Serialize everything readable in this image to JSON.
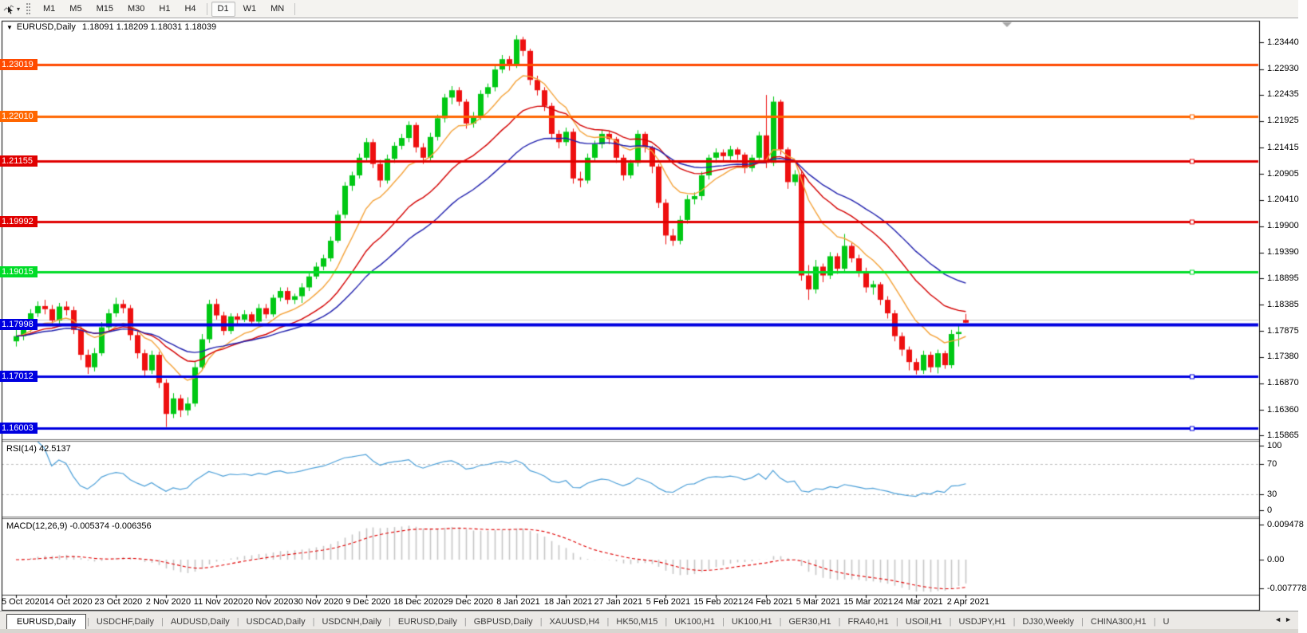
{
  "toolbar": {
    "dropdown_caret": "▾",
    "timeframes": [
      {
        "label": "M1",
        "active": false
      },
      {
        "label": "M5",
        "active": false
      },
      {
        "label": "M15",
        "active": false
      },
      {
        "label": "M30",
        "active": false
      },
      {
        "label": "H1",
        "active": false
      },
      {
        "label": "H4",
        "active": false
      },
      {
        "label": "D1",
        "active": true
      },
      {
        "label": "W1",
        "active": false
      },
      {
        "label": "MN",
        "active": false
      }
    ]
  },
  "chart_window": {
    "title_marker": "▼",
    "symbol": "EURUSD,Daily",
    "ohlc_text": "1.18091 1.18209 1.18031 1.18039",
    "price_axis_labels": [
      "1.23440",
      "1.22930",
      "1.22435",
      "1.21925",
      "1.21415",
      "1.20905",
      "1.20410",
      "1.19900",
      "1.19390",
      "1.18895",
      "1.18385",
      "1.17875",
      "1.17380",
      "1.16870",
      "1.16360",
      "1.15865"
    ],
    "hlines": [
      {
        "price": 1.23019,
        "label": "1.23019",
        "color": "#FF4A00",
        "width": 3,
        "handles": false
      },
      {
        "price": 1.2201,
        "label": "1.22010",
        "color": "#FF6600",
        "width": 3,
        "handles": true
      },
      {
        "price": 1.21155,
        "label": "1.21155",
        "color": "#E00000",
        "width": 3,
        "handles": true
      },
      {
        "price": 1.19992,
        "label": "1.19992",
        "color": "#E00000",
        "width": 3,
        "handles": true
      },
      {
        "price": 1.19015,
        "label": "1.19015",
        "color": "#00DC28",
        "width": 3,
        "handles": true
      },
      {
        "price": 1.17998,
        "label": "1.17998",
        "color": "#0000E0",
        "width": 4,
        "handles": false
      },
      {
        "price": 1.17012,
        "label": "1.17012",
        "color": "#0000E0",
        "width": 3,
        "handles": true
      },
      {
        "price": 1.16003,
        "label": "1.16003",
        "color": "#0000E0",
        "width": 3,
        "handles": true
      }
    ],
    "gray_line_price": 1.1809,
    "rsi": {
      "label": "RSI(14) 42.5137",
      "line_color": "#4B9FD8",
      "levels": [
        {
          "value": 100,
          "label": "100",
          "dashed": false
        },
        {
          "value": 70,
          "label": "70",
          "dashed": true
        },
        {
          "value": 30,
          "label": "30",
          "dashed": true
        },
        {
          "value": 0,
          "label": "0",
          "dashed": false
        }
      ]
    },
    "macd": {
      "label": "MACD(12,26,9) -0.005374 -0.006356",
      "hist_color": "#c6c6c6",
      "signal_color": "#E00000",
      "axis": [
        {
          "value": 0.009478,
          "label": "0.009478"
        },
        {
          "value": 0,
          "label": "0.00"
        },
        {
          "value": -0.007778,
          "label": "-0.007778"
        }
      ]
    }
  },
  "chart_data": {
    "type": "candlestick",
    "title": "EURUSD,Daily",
    "symbol": "EURUSD",
    "timeframe": "Daily",
    "up_color": "#00C814",
    "down_color": "#EE1010",
    "y_range": [
      1.15776,
      1.23615
    ],
    "x_tick_every": 7,
    "x_tick_labels": [
      "5 Oct 2020",
      "14 Oct 2020",
      "23 Oct 2020",
      "2 Nov 2020",
      "11 Nov 2020",
      "20 Nov 2020",
      "30 Nov 2020",
      "9 Dec 2020",
      "18 Dec 2020",
      "29 Dec 2020",
      "8 Jan 2021",
      "18 Jan 2021",
      "27 Jan 2021",
      "5 Feb 2021",
      "15 Feb 2021",
      "24 Feb 2021",
      "5 Mar 2021",
      "15 Mar 2021",
      "24 Mar 2021",
      "2 Apr 2021"
    ],
    "moving_averages": [
      {
        "type": "ema",
        "period": 10,
        "color": "#F5A33A"
      },
      {
        "type": "ema",
        "period": 21,
        "color": "#D40000"
      },
      {
        "type": "ema",
        "period": 34,
        "color": "#2121AE"
      }
    ],
    "rsi_period": 14,
    "macd_params": [
      12,
      26,
      9
    ],
    "ohlc": [
      [
        1.1768,
        1.1796,
        1.1758,
        1.1778
      ],
      [
        1.1778,
        1.18,
        1.177,
        1.1792
      ],
      [
        1.1792,
        1.183,
        1.1786,
        1.1822
      ],
      [
        1.1822,
        1.1845,
        1.1815,
        1.1836
      ],
      [
        1.1836,
        1.1848,
        1.182,
        1.183
      ],
      [
        1.183,
        1.1838,
        1.1798,
        1.1808
      ],
      [
        1.1808,
        1.1842,
        1.18,
        1.1835
      ],
      [
        1.1835,
        1.1845,
        1.1818,
        1.1828
      ],
      [
        1.1828,
        1.1835,
        1.1782,
        1.179
      ],
      [
        1.179,
        1.1798,
        1.1732,
        1.1742
      ],
      [
        1.1742,
        1.1752,
        1.1705,
        1.1718
      ],
      [
        1.1718,
        1.1755,
        1.171,
        1.1745
      ],
      [
        1.1745,
        1.1805,
        1.174,
        1.1795
      ],
      [
        1.1795,
        1.183,
        1.1788,
        1.1822
      ],
      [
        1.1822,
        1.1852,
        1.1815,
        1.184
      ],
      [
        1.184,
        1.1848,
        1.1822,
        1.1832
      ],
      [
        1.1832,
        1.1838,
        1.177,
        1.178
      ],
      [
        1.178,
        1.1788,
        1.1735,
        1.1745
      ],
      [
        1.1745,
        1.1752,
        1.17,
        1.1712
      ],
      [
        1.1712,
        1.175,
        1.1705,
        1.1742
      ],
      [
        1.1742,
        1.1748,
        1.1678,
        1.1688
      ],
      [
        1.1688,
        1.1695,
        1.1603,
        1.1628
      ],
      [
        1.1628,
        1.1668,
        1.162,
        1.1658
      ],
      [
        1.1658,
        1.1665,
        1.1622,
        1.1635
      ],
      [
        1.1635,
        1.166,
        1.1625,
        1.1648
      ],
      [
        1.1648,
        1.1728,
        1.1642,
        1.1718
      ],
      [
        1.1718,
        1.1782,
        1.1712,
        1.1772
      ],
      [
        1.1772,
        1.1848,
        1.1765,
        1.184
      ],
      [
        1.184,
        1.185,
        1.181,
        1.1818
      ],
      [
        1.1818,
        1.1825,
        1.178,
        1.1788
      ],
      [
        1.1788,
        1.1822,
        1.1782,
        1.1816
      ],
      [
        1.1816,
        1.1822,
        1.1802,
        1.181
      ],
      [
        1.181,
        1.1828,
        1.1805,
        1.182
      ],
      [
        1.182,
        1.1825,
        1.1798,
        1.1806
      ],
      [
        1.1806,
        1.184,
        1.18,
        1.1832
      ],
      [
        1.1832,
        1.184,
        1.1812,
        1.182
      ],
      [
        1.182,
        1.1858,
        1.1815,
        1.1852
      ],
      [
        1.1852,
        1.1872,
        1.1845,
        1.1865
      ],
      [
        1.1865,
        1.1872,
        1.184,
        1.1848
      ],
      [
        1.1848,
        1.186,
        1.184,
        1.1855
      ],
      [
        1.1855,
        1.188,
        1.1842,
        1.1872
      ],
      [
        1.1872,
        1.19,
        1.1865,
        1.1893
      ],
      [
        1.1893,
        1.192,
        1.1888,
        1.1912
      ],
      [
        1.1912,
        1.1935,
        1.1905,
        1.1928
      ],
      [
        1.1928,
        1.197,
        1.1922,
        1.1962
      ],
      [
        1.1962,
        1.202,
        1.1958,
        1.2012
      ],
      [
        1.2012,
        1.2075,
        1.2005,
        1.2068
      ],
      [
        1.2068,
        1.2095,
        1.2058,
        1.2088
      ],
      [
        1.2088,
        1.213,
        1.2082,
        1.2122
      ],
      [
        1.2122,
        1.216,
        1.2115,
        1.2152
      ],
      [
        1.2152,
        1.2158,
        1.2102,
        1.211
      ],
      [
        1.211,
        1.2118,
        1.2065,
        1.2078
      ],
      [
        1.2078,
        1.2128,
        1.2072,
        1.212
      ],
      [
        1.212,
        1.2152,
        1.2112,
        1.2145
      ],
      [
        1.2145,
        1.2168,
        1.2138,
        1.216
      ],
      [
        1.216,
        1.2192,
        1.2152,
        1.2185
      ],
      [
        1.2185,
        1.219,
        1.2132,
        1.2142
      ],
      [
        1.2142,
        1.215,
        1.211,
        1.2122
      ],
      [
        1.2122,
        1.217,
        1.2115,
        1.2162
      ],
      [
        1.2162,
        1.2205,
        1.2155,
        1.2198
      ],
      [
        1.2198,
        1.2245,
        1.219,
        1.2238
      ],
      [
        1.2238,
        1.226,
        1.2225,
        1.2252
      ],
      [
        1.2252,
        1.2258,
        1.2222,
        1.223
      ],
      [
        1.223,
        1.2235,
        1.2178,
        1.2188
      ],
      [
        1.2188,
        1.221,
        1.218,
        1.2202
      ],
      [
        1.2202,
        1.2252,
        1.2195,
        1.2245
      ],
      [
        1.2245,
        1.2265,
        1.2238,
        1.2258
      ],
      [
        1.2258,
        1.23,
        1.225,
        1.2292
      ],
      [
        1.2292,
        1.232,
        1.2285,
        1.2312
      ],
      [
        1.2312,
        1.2318,
        1.229,
        1.2302
      ],
      [
        1.2302,
        1.2358,
        1.2295,
        1.235
      ],
      [
        1.235,
        1.2355,
        1.2318,
        1.2328
      ],
      [
        1.2328,
        1.2332,
        1.2262,
        1.2272
      ],
      [
        1.2272,
        1.228,
        1.2242,
        1.2252
      ],
      [
        1.2252,
        1.2258,
        1.2212,
        1.2222
      ],
      [
        1.2222,
        1.2228,
        1.2158,
        1.2168
      ],
      [
        1.2168,
        1.2175,
        1.214,
        1.2152
      ],
      [
        1.2152,
        1.218,
        1.2145,
        1.2172
      ],
      [
        1.2172,
        1.2178,
        1.2072,
        1.2082
      ],
      [
        1.2082,
        1.2095,
        1.2065,
        1.2078
      ],
      [
        1.2078,
        1.213,
        1.2072,
        1.2122
      ],
      [
        1.2122,
        1.2155,
        1.2115,
        1.2148
      ],
      [
        1.2148,
        1.2175,
        1.214,
        1.2168
      ],
      [
        1.2168,
        1.2172,
        1.2148,
        1.2158
      ],
      [
        1.2158,
        1.2162,
        1.2112,
        1.2122
      ],
      [
        1.2122,
        1.2128,
        1.2078,
        1.2088
      ],
      [
        1.2088,
        1.2118,
        1.2082,
        1.2112
      ],
      [
        1.2112,
        1.2175,
        1.2105,
        1.2168
      ],
      [
        1.2168,
        1.2172,
        1.2132,
        1.2142
      ],
      [
        1.2142,
        1.2145,
        1.2092,
        1.2105
      ],
      [
        1.2105,
        1.211,
        1.2025,
        1.2035
      ],
      [
        1.2035,
        1.2042,
        1.1955,
        1.1972
      ],
      [
        1.1972,
        1.1985,
        1.1952,
        1.1962
      ],
      [
        1.1962,
        1.201,
        1.1955,
        1.2002
      ],
      [
        1.2002,
        1.205,
        1.1995,
        1.2042
      ],
      [
        1.2042,
        1.2055,
        1.2032,
        1.2048
      ],
      [
        1.2048,
        1.2095,
        1.204,
        1.2088
      ],
      [
        1.2088,
        1.2128,
        1.208,
        1.2122
      ],
      [
        1.2122,
        1.214,
        1.2112,
        1.2132
      ],
      [
        1.2132,
        1.2138,
        1.2115,
        1.2125
      ],
      [
        1.2125,
        1.2145,
        1.2118,
        1.2138
      ],
      [
        1.2138,
        1.2142,
        1.2118,
        1.2128
      ],
      [
        1.2128,
        1.2132,
        1.2092,
        1.2102
      ],
      [
        1.2102,
        1.2128,
        1.2095,
        1.2122
      ],
      [
        1.2122,
        1.2172,
        1.2115,
        1.2165
      ],
      [
        1.2165,
        1.2243,
        1.2102,
        1.2112
      ],
      [
        1.2112,
        1.224,
        1.2106,
        1.223
      ],
      [
        1.223,
        1.2234,
        1.2128,
        1.2138
      ],
      [
        1.2138,
        1.2142,
        1.2062,
        1.2075
      ],
      [
        1.2075,
        1.2098,
        1.2068,
        1.209
      ],
      [
        1.209,
        1.2095,
        1.1885,
        1.1895
      ],
      [
        1.1895,
        1.1915,
        1.1848,
        1.1868
      ],
      [
        1.1868,
        1.1925,
        1.186,
        1.1912
      ],
      [
        1.1912,
        1.1918,
        1.1882,
        1.1895
      ],
      [
        1.1895,
        1.194,
        1.1888,
        1.1932
      ],
      [
        1.1932,
        1.1938,
        1.1898,
        1.1908
      ],
      [
        1.1908,
        1.1975,
        1.19,
        1.1952
      ],
      [
        1.1952,
        1.1958,
        1.192,
        1.1928
      ],
      [
        1.1928,
        1.1935,
        1.1892,
        1.1902
      ],
      [
        1.1902,
        1.191,
        1.1862,
        1.1872
      ],
      [
        1.1872,
        1.1885,
        1.1858,
        1.1878
      ],
      [
        1.1878,
        1.1882,
        1.1838,
        1.1848
      ],
      [
        1.1848,
        1.1855,
        1.1812,
        1.1822
      ],
      [
        1.1822,
        1.1828,
        1.1768,
        1.1778
      ],
      [
        1.1778,
        1.1785,
        1.174,
        1.1752
      ],
      [
        1.1752,
        1.1758,
        1.1712,
        1.1728
      ],
      [
        1.1728,
        1.1735,
        1.1704,
        1.1712
      ],
      [
        1.1712,
        1.175,
        1.1705,
        1.1742
      ],
      [
        1.1742,
        1.1748,
        1.1708,
        1.1718
      ],
      [
        1.1718,
        1.1752,
        1.1706,
        1.1745
      ],
      [
        1.1745,
        1.175,
        1.1715,
        1.1722
      ],
      [
        1.1722,
        1.179,
        1.1716,
        1.1782
      ],
      [
        1.1782,
        1.18,
        1.1758,
        1.1786
      ],
      [
        1.18091,
        1.18209,
        1.18031,
        1.18039
      ]
    ]
  },
  "tabs": {
    "items": [
      {
        "label": "EURUSD,Daily",
        "active": true
      },
      {
        "label": "USDCHF,Daily",
        "active": false
      },
      {
        "label": "AUDUSD,Daily",
        "active": false
      },
      {
        "label": "USDCAD,Daily",
        "active": false
      },
      {
        "label": "USDCNH,Daily",
        "active": false
      },
      {
        "label": "EURUSD,Daily",
        "active": false
      },
      {
        "label": "GBPUSD,Daily",
        "active": false
      },
      {
        "label": "XAUUSD,H4",
        "active": false
      },
      {
        "label": "HK50,M15",
        "active": false
      },
      {
        "label": "UK100,H1",
        "active": false
      },
      {
        "label": "UK100,H1",
        "active": false
      },
      {
        "label": "GER30,H1",
        "active": false
      },
      {
        "label": "FRA40,H1",
        "active": false
      },
      {
        "label": "USOil,H1",
        "active": false
      },
      {
        "label": "USDJPY,H1",
        "active": false
      },
      {
        "label": "DJ30,Weekly",
        "active": false
      },
      {
        "label": "CHINA300,H1",
        "active": false
      },
      {
        "label": "U",
        "active": false
      }
    ],
    "scroll_left": "◄",
    "scroll_right": "►"
  }
}
